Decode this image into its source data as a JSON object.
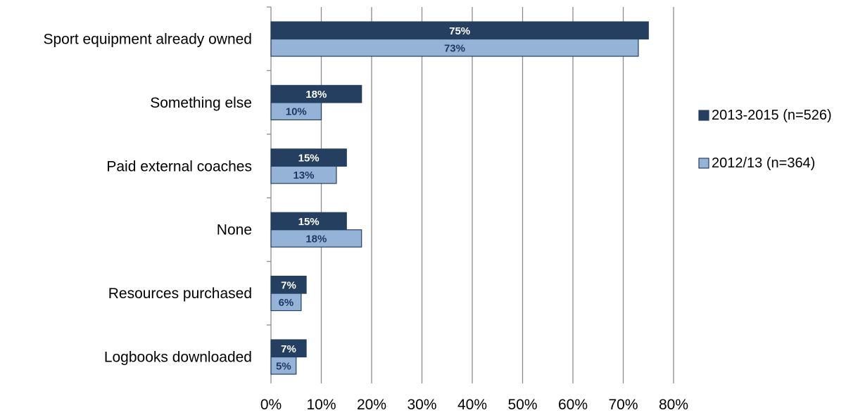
{
  "chart_data": {
    "type": "bar",
    "orientation": "horizontal",
    "categories": [
      "Sport equipment already owned",
      "Something else",
      "Paid external coaches",
      "None",
      "Resources purchased",
      "Logbooks downloaded"
    ],
    "series": [
      {
        "name": "2013-2015 (n=526)",
        "values": [
          75,
          18,
          15,
          15,
          7,
          7
        ],
        "labels": [
          "75%",
          "18%",
          "15%",
          "15%",
          "7%",
          "7%"
        ],
        "color": "#243f60",
        "label_color": "#ffffff"
      },
      {
        "name": "2012/13 (n=364)",
        "values": [
          73,
          10,
          13,
          18,
          6,
          5
        ],
        "labels": [
          "73%",
          "10%",
          "13%",
          "18%",
          "6%",
          "5%"
        ],
        "color": "#95b3d7",
        "label_color": "#1f3864"
      }
    ],
    "xlim": [
      0,
      80
    ],
    "x_ticks": [
      "0%",
      "10%",
      "20%",
      "30%",
      "40%",
      "50%",
      "60%",
      "70%",
      "80%"
    ],
    "xlabel": "",
    "ylabel": "",
    "title": "",
    "grid": true,
    "legend_position": "right"
  }
}
